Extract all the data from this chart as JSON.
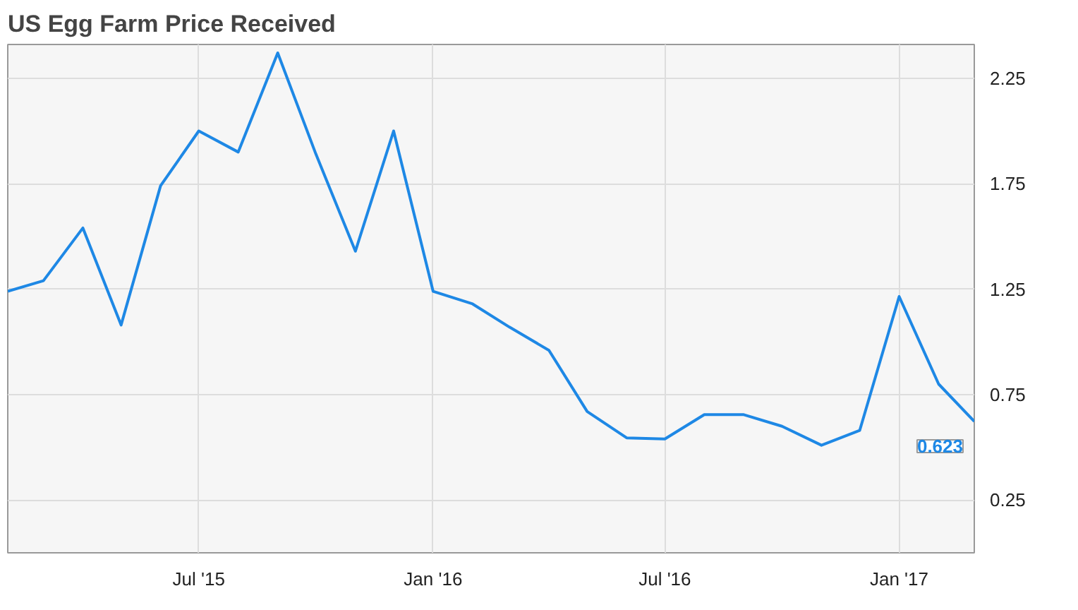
{
  "chart_data": {
    "type": "line",
    "title": "US Egg Farm Price Received",
    "x": [
      "2015-02",
      "2015-03",
      "2015-04",
      "2015-05",
      "2015-06",
      "2015-07",
      "2015-08",
      "2015-09",
      "2015-10",
      "2015-11",
      "2015-12",
      "2016-01",
      "2016-02",
      "2016-03",
      "2016-04",
      "2016-05",
      "2016-06",
      "2016-07",
      "2016-08",
      "2016-09",
      "2016-10",
      "2016-11",
      "2016-12",
      "2017-01",
      "2017-02",
      "2017-03"
    ],
    "series": [
      {
        "color": "#1e88e5",
        "values": [
          1.24,
          1.29,
          1.54,
          1.08,
          1.74,
          2.0,
          1.9,
          2.37,
          1.89,
          1.43,
          2.0,
          1.24,
          1.18,
          1.07,
          0.96,
          0.67,
          0.545,
          0.54,
          0.655,
          0.655,
          0.6,
          0.51,
          0.58,
          1.215,
          0.8,
          0.623
        ],
        "value_labels": [
          null,
          null,
          null,
          null,
          null,
          null,
          null,
          null,
          null,
          null,
          null,
          null,
          null,
          null,
          null,
          null,
          null,
          null,
          null,
          null,
          null,
          null,
          null,
          null,
          null,
          "0.623"
        ]
      }
    ],
    "xlim": [
      "2015-02",
      "2017-03"
    ],
    "xticks": [
      {
        "value": "2015-07",
        "label": "Jul '15"
      },
      {
        "value": "2016-01",
        "label": "Jan '16"
      },
      {
        "value": "2016-07",
        "label": "Jul '16"
      },
      {
        "value": "2017-01",
        "label": "Jan '17"
      }
    ],
    "ylim": [
      0,
      2.41
    ],
    "yticks": [
      0.25,
      0.75,
      1.25,
      1.75,
      2.25
    ],
    "grid": true,
    "marker": "none",
    "line_style": "solid"
  }
}
